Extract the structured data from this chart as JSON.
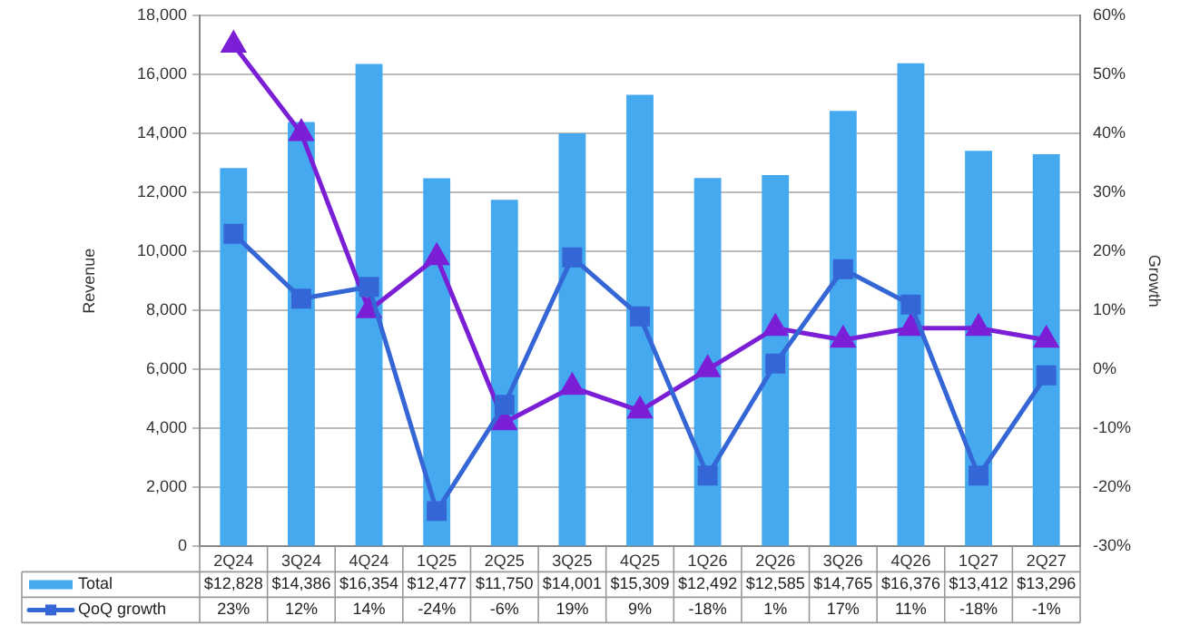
{
  "chart_data": {
    "type": "bar",
    "categories": [
      "2Q24",
      "3Q24",
      "4Q24",
      "1Q25",
      "2Q25",
      "3Q25",
      "4Q25",
      "1Q26",
      "2Q26",
      "3Q26",
      "4Q26",
      "1Q27",
      "2Q27"
    ],
    "ylabel": "Revenue",
    "y2label": "Growth",
    "series": [
      {
        "name": "Total",
        "color": "#45a9f0",
        "values": [
          12828,
          14386,
          16354,
          12477,
          11750,
          14001,
          15309,
          12492,
          12585,
          14765,
          16376,
          13412,
          13296
        ],
        "value_labels": [
          "$12,828",
          "$14,386",
          "$16,354",
          "$12,477",
          "$11,750",
          "$14,001",
          "$15,309",
          "$12,492",
          "$12,585",
          "$14,765",
          "$16,376",
          "$13,412",
          "$13,296"
        ]
      },
      {
        "name": "QoQ growth",
        "type": "line",
        "axis": "y2",
        "color": "#3566d6",
        "marker": "square",
        "values": [
          23,
          12,
          14,
          -24,
          -6,
          19,
          9,
          -18,
          1,
          17,
          11,
          -18,
          -1
        ],
        "value_labels": [
          "23%",
          "12%",
          "14%",
          "-24%",
          "-6%",
          "19%",
          "9%",
          "-18%",
          "1%",
          "17%",
          "11%",
          "-18%",
          "-1%"
        ]
      },
      {
        "type": "line",
        "axis": "y2",
        "color": "#7b1fd6",
        "marker": "triangle",
        "values": [
          55,
          40,
          10,
          19,
          -9,
          -3,
          -7,
          0,
          7,
          5,
          7,
          7,
          5
        ]
      }
    ],
    "ylim": [
      0,
      18000
    ],
    "yticks": [
      {
        "value": 0,
        "label": "0"
      },
      {
        "value": 2000,
        "label": "2,000"
      },
      {
        "value": 4000,
        "label": "4,000"
      },
      {
        "value": 6000,
        "label": "6,000"
      },
      {
        "value": 8000,
        "label": "8,000"
      },
      {
        "value": 10000,
        "label": "10,000"
      },
      {
        "value": 12000,
        "label": "12,000"
      },
      {
        "value": 14000,
        "label": "14,000"
      },
      {
        "value": 16000,
        "label": "16,000"
      },
      {
        "value": 18000,
        "label": "18,000"
      }
    ],
    "y2lim": [
      -30,
      60
    ],
    "y2ticks": [
      {
        "value": -30,
        "label": "-30%"
      },
      {
        "value": -20,
        "label": "-20%"
      },
      {
        "value": -10,
        "label": "-10%"
      },
      {
        "value": 0,
        "label": "0%"
      },
      {
        "value": 10,
        "label": "10%"
      },
      {
        "value": 20,
        "label": "20%"
      },
      {
        "value": 30,
        "label": "30%"
      },
      {
        "value": 40,
        "label": "40%"
      },
      {
        "value": 50,
        "label": "50%"
      },
      {
        "value": 60,
        "label": "60%"
      }
    ],
    "grid": "y",
    "legend": "bottom left"
  }
}
